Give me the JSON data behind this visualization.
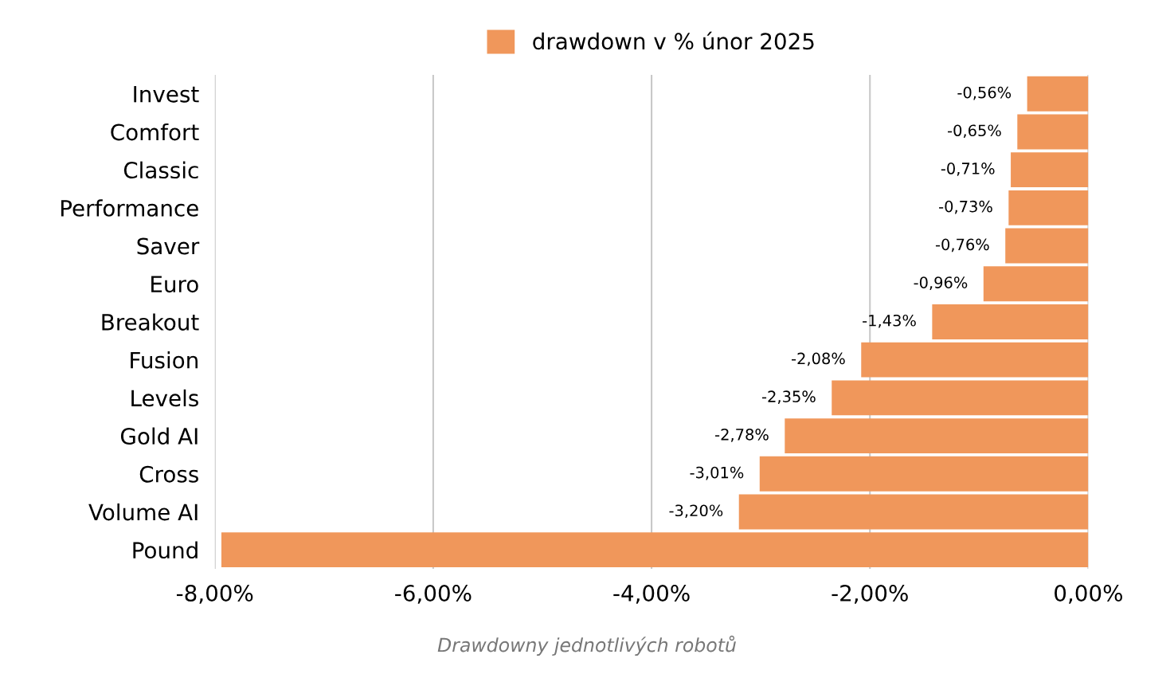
{
  "chart_data": {
    "type": "bar",
    "orientation": "horizontal",
    "categories": [
      "Invest",
      "Comfort",
      "Classic",
      "Performance",
      "Saver",
      "Euro",
      "Breakout",
      "Fusion",
      "Levels",
      "Gold AI",
      "Cross",
      "Volume AI",
      "Pound"
    ],
    "series": [
      {
        "name": "drawdown v % únor 2025",
        "color": "#f0975b",
        "values": [
          -0.56,
          -0.65,
          -0.71,
          -0.73,
          -0.76,
          -0.96,
          -1.43,
          -2.08,
          -2.35,
          -2.78,
          -3.01,
          -3.2,
          -7.94
        ],
        "value_labels": [
          "-0,56%",
          "-0,65%",
          "-0,71%",
          "-0,73%",
          "-0,76%",
          "-0,96%",
          "-1,43%",
          "-2,08%",
          "-2,35%",
          "-2,78%",
          "-3,01%",
          "-3,20%",
          null
        ]
      }
    ],
    "xlim": [
      -8,
      0
    ],
    "xticks": [
      {
        "value": -8,
        "label": "-8,00%"
      },
      {
        "value": -6,
        "label": "-6,00%"
      },
      {
        "value": -4,
        "label": "-4,00%"
      },
      {
        "value": -2,
        "label": "-2,00%"
      },
      {
        "value": 0,
        "label": "0,00%"
      }
    ],
    "grid": "x",
    "legend": "top",
    "annotations": [
      "Drawdowny jednotlivých robotů"
    ]
  }
}
